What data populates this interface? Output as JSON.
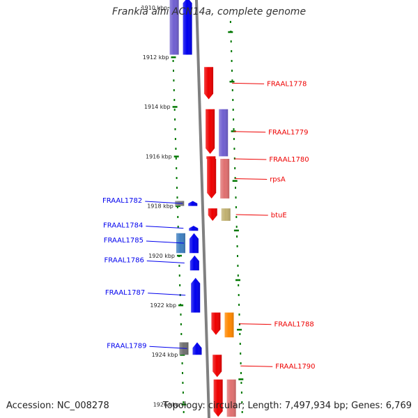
{
  "title": "Frankia alni ACN14a, complete genome",
  "footer": {
    "accession": "Accession: NC_008278",
    "summary": "Topology: circular; Length: 7,497,934 bp; Genes: 6,769"
  },
  "colors": {
    "backbone": "#808080",
    "tick": "#007700",
    "forward": "#0000ee",
    "reverse": "#ee0000"
  },
  "ticks": [
    {
      "kbp": 1910,
      "label": "1910 kbp"
    },
    {
      "kbp": 1912,
      "label": "1912 kbp"
    },
    {
      "kbp": 1914,
      "label": "1914 kbp"
    },
    {
      "kbp": 1916,
      "label": "1916 kbp"
    },
    {
      "kbp": 1918,
      "label": "1918 kbp"
    },
    {
      "kbp": 1920,
      "label": "1920 kbp"
    },
    {
      "kbp": 1922,
      "label": "1922 kbp"
    },
    {
      "kbp": 1924,
      "label": "1924 kbp"
    },
    {
      "kbp": 1926,
      "label": "1926 kbp"
    }
  ],
  "genes": [
    {
      "name": "",
      "strand": "+",
      "track": 1,
      "start_kbp": 1909.6,
      "end_kbp": 1911.9,
      "color": "#0000ee"
    },
    {
      "name": "",
      "strand": "+",
      "track": 2,
      "start_kbp": 1909.6,
      "end_kbp": 1911.9,
      "color": "#7060d0"
    },
    {
      "name": "FRAAL1778",
      "strand": "-",
      "track": 1,
      "start_kbp": 1912.4,
      "end_kbp": 1913.7,
      "color": "#ee0000"
    },
    {
      "name": "FRAAL1779",
      "strand": "-",
      "track": 1,
      "start_kbp": 1914.1,
      "end_kbp": 1915.9,
      "color": "#ee0000"
    },
    {
      "name": "",
      "strand": "-",
      "track": 2,
      "start_kbp": 1914.1,
      "end_kbp": 1916.0,
      "color": "#7060d0"
    },
    {
      "name": "FRAAL1780",
      "strand": "-",
      "track": 1,
      "start_kbp": 1916.0,
      "end_kbp": 1916.2,
      "color": "#ee0000"
    },
    {
      "name": "rpsA",
      "strand": "-",
      "track": 1,
      "start_kbp": 1916.1,
      "end_kbp": 1917.7,
      "color": "#ee0000"
    },
    {
      "name": "",
      "strand": "-",
      "track": 2,
      "start_kbp": 1916.1,
      "end_kbp": 1917.7,
      "color": "#e07070"
    },
    {
      "name": "btuE",
      "strand": "-",
      "track": 1,
      "start_kbp": 1918.1,
      "end_kbp": 1918.6,
      "color": "#ee0000"
    },
    {
      "name": "",
      "strand": "-",
      "track": 2,
      "start_kbp": 1918.1,
      "end_kbp": 1918.6,
      "color": "#c0b070"
    },
    {
      "name": "FRAAL1782",
      "strand": "+",
      "track": 1,
      "start_kbp": 1917.8,
      "end_kbp": 1918.0,
      "color": "#0000ee"
    },
    {
      "name": "",
      "strand": "+",
      "track": 2,
      "start_kbp": 1917.8,
      "end_kbp": 1918.0,
      "color": "#808080"
    },
    {
      "name": "FRAAL1784",
      "strand": "+",
      "track": 1,
      "start_kbp": 1918.8,
      "end_kbp": 1919.0,
      "color": "#0000ee"
    },
    {
      "name": "FRAAL1785",
      "strand": "+",
      "track": 1,
      "start_kbp": 1919.1,
      "end_kbp": 1919.9,
      "color": "#0000ee"
    },
    {
      "name": "",
      "strand": "+",
      "track": 2,
      "start_kbp": 1919.1,
      "end_kbp": 1919.9,
      "color": "#4080c0"
    },
    {
      "name": "FRAAL1786",
      "strand": "+",
      "track": 1,
      "start_kbp": 1920.0,
      "end_kbp": 1920.6,
      "color": "#0000ee"
    },
    {
      "name": "FRAAL1787",
      "strand": "+",
      "track": 1,
      "start_kbp": 1920.9,
      "end_kbp": 1922.3,
      "color": "#0000ee"
    },
    {
      "name": "FRAAL1788",
      "strand": "-",
      "track": 1,
      "start_kbp": 1922.3,
      "end_kbp": 1923.2,
      "color": "#ee0000"
    },
    {
      "name": "",
      "strand": "-",
      "track": 2,
      "start_kbp": 1922.3,
      "end_kbp": 1923.3,
      "color": "#ff8800"
    },
    {
      "name": "FRAAL1789",
      "strand": "+",
      "track": 1,
      "start_kbp": 1923.5,
      "end_kbp": 1924.0,
      "color": "#0000ee"
    },
    {
      "name": "",
      "strand": "+",
      "track": 2,
      "start_kbp": 1923.5,
      "end_kbp": 1924.0,
      "color": "#707070"
    },
    {
      "name": "FRAAL1790",
      "strand": "-",
      "track": 1,
      "start_kbp": 1924.0,
      "end_kbp": 1924.9,
      "color": "#ee0000"
    },
    {
      "name": "",
      "strand": "-",
      "track": 1,
      "start_kbp": 1925.0,
      "end_kbp": 1926.5,
      "color": "#ee0000"
    },
    {
      "name": "",
      "strand": "-",
      "track": 2,
      "start_kbp": 1925.0,
      "end_kbp": 1926.5,
      "color": "#e07070"
    }
  ]
}
